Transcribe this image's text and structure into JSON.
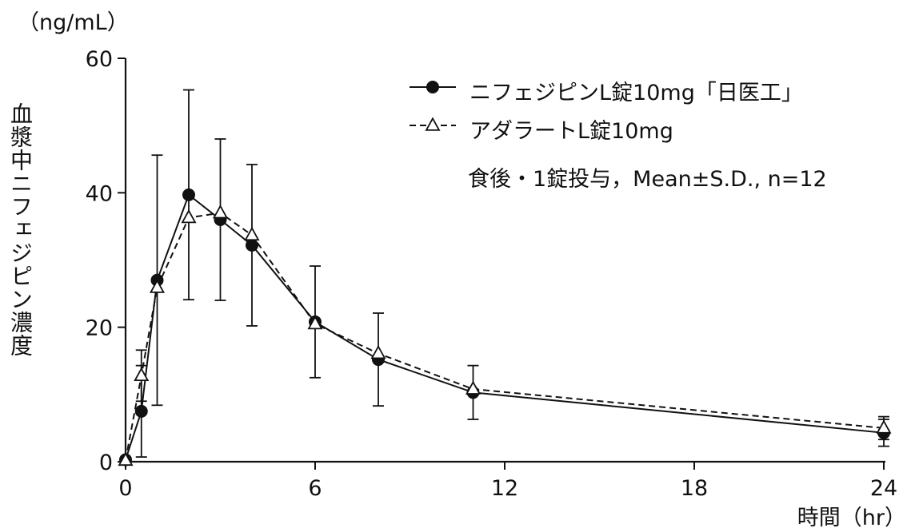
{
  "chart_data": {
    "type": "line",
    "unit_label": "（ng/mL）",
    "ylabel": "血漿中ニフェジピン濃度",
    "xlabel": "時間（hr）",
    "note": "食後・1錠投与，Mean±S.D., n=12",
    "xlim": [
      0,
      24
    ],
    "ylim": [
      0,
      60
    ],
    "xticks": [
      0,
      6,
      12,
      18,
      24
    ],
    "yticks": [
      0,
      20,
      40,
      60
    ],
    "x": [
      0,
      0.5,
      1,
      2,
      3,
      4,
      6,
      8,
      11,
      24
    ],
    "legend_position": "top-right",
    "series": [
      {
        "name": "ニフェジピンL錠10mg「日医工」",
        "marker": "filled-circle",
        "line": "solid",
        "color": "#111111",
        "values": [
          0.3,
          7.5,
          27.0,
          39.7,
          36.0,
          32.2,
          20.8,
          15.2,
          10.3,
          4.3
        ],
        "sd": [
          0,
          6.8,
          18.6,
          15.6,
          12.0,
          12.0,
          8.3,
          6.9,
          4.0,
          2.0
        ]
      },
      {
        "name": "アダラートL錠10mg",
        "marker": "open-triangle",
        "line": "dashed",
        "color": "#111111",
        "values": [
          0.2,
          12.8,
          25.9,
          36.3,
          37.0,
          33.7,
          20.5,
          16.1,
          10.8,
          5.0
        ],
        "sd": [
          0,
          3.8,
          0,
          0,
          0,
          0,
          0,
          0,
          0,
          1.7
        ]
      }
    ]
  }
}
